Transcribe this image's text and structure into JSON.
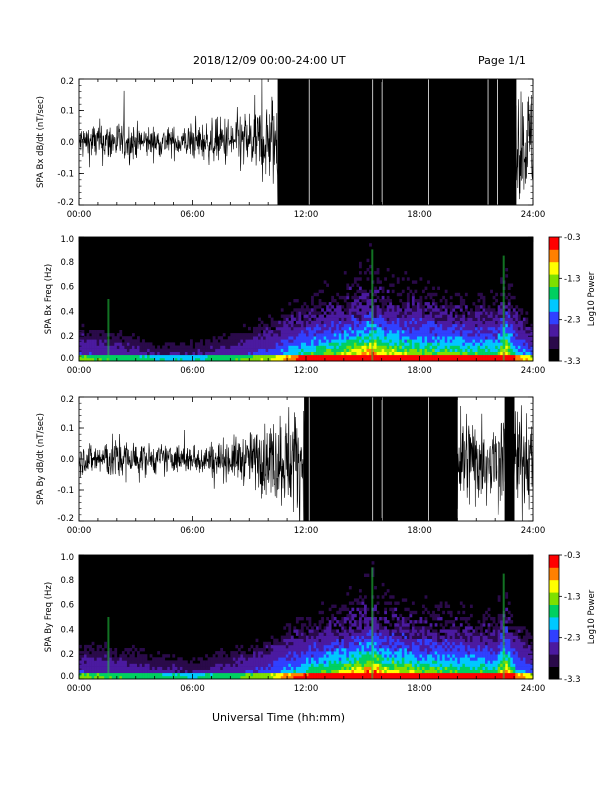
{
  "header": {
    "date_range": "2018/12/09   00:00-24:00 UT",
    "page": "Page 1/1"
  },
  "footer": {
    "xlabel": "Universal Time (hh:mm)"
  },
  "colors": {
    "trace": "#000000",
    "spectrogram_background": "#000000",
    "colorbar": [
      "#000000",
      "#2a0a4a",
      "#4b1aa0",
      "#3040ff",
      "#00c8ff",
      "#00d060",
      "#7ee000",
      "#ffff00",
      "#ff8000",
      "#ff0000"
    ]
  },
  "chart_data": [
    {
      "type": "line",
      "id": "bx-dbdt",
      "ylabel": "SPA Bx dB/dt (nT/sec)",
      "xlabel": "",
      "x_ticks": [
        "00:00",
        "06:00",
        "12:00",
        "18:00",
        "24:00"
      ],
      "y_ticks": [
        "0.2",
        "0.1",
        "0.0",
        "-0.1",
        "-0.2"
      ],
      "xlim": [
        0,
        24
      ],
      "ylim": [
        -0.2,
        0.2
      ],
      "series": [
        {
          "x": [
            0,
            1,
            2,
            3,
            4,
            5,
            6,
            7,
            8,
            9,
            10,
            10.5,
            11,
            12,
            13,
            14,
            15,
            16,
            17,
            18,
            19,
            20,
            21,
            22,
            22.5,
            23,
            24
          ],
          "amplitude": [
            0.06,
            0.07,
            0.07,
            0.06,
            0.05,
            0.05,
            0.06,
            0.07,
            0.09,
            0.11,
            0.14,
            0.2,
            0.2,
            0.2,
            0.2,
            0.2,
            0.2,
            0.2,
            0.2,
            0.2,
            0.2,
            0.2,
            0.2,
            0.2,
            0.2,
            0.2,
            0.18
          ]
        }
      ]
    },
    {
      "type": "heatmap",
      "id": "bx-freq",
      "ylabel": "SPA Bx Freq (Hz)",
      "x_ticks": [
        "00:00",
        "06:00",
        "12:00",
        "18:00",
        "24:00"
      ],
      "y_ticks": [
        "1.0",
        "0.8",
        "0.6",
        "0.4",
        "0.2",
        "0.0"
      ],
      "xlim": [
        0,
        24
      ],
      "ylim": [
        0,
        1.0
      ],
      "colorbar_label": "Log10 Power",
      "colorbar_ticks": [
        "-0.3",
        "-1.3",
        "-2.3",
        "-3.3"
      ],
      "colorbar_range": [
        -3.3,
        -0.3
      ],
      "activity_hours": [
        0,
        2,
        4,
        6,
        8,
        10,
        12,
        14,
        15.5,
        16,
        18,
        20,
        22,
        22.5,
        23,
        24
      ],
      "activity_level": [
        0.25,
        0.2,
        0.15,
        0.15,
        0.2,
        0.3,
        0.5,
        0.65,
        0.85,
        0.7,
        0.6,
        0.55,
        0.5,
        0.8,
        0.45,
        0.3
      ]
    },
    {
      "type": "line",
      "id": "by-dbdt",
      "ylabel": "SPA By dB/dt (nT/sec)",
      "xlabel": "",
      "x_ticks": [
        "00:00",
        "06:00",
        "12:00",
        "18:00",
        "24:00"
      ],
      "y_ticks": [
        "0.2",
        "0.1",
        "0.0",
        "-0.1",
        "-0.2"
      ],
      "xlim": [
        0,
        24
      ],
      "ylim": [
        -0.2,
        0.2
      ],
      "series": [
        {
          "x": [
            0,
            1,
            2,
            3,
            4,
            5,
            6,
            7,
            8,
            9,
            10,
            11,
            12,
            13,
            14,
            15,
            16,
            17,
            18,
            19,
            20,
            21,
            22,
            22.5,
            23,
            24
          ],
          "amplitude": [
            0.05,
            0.06,
            0.08,
            0.06,
            0.05,
            0.05,
            0.05,
            0.06,
            0.07,
            0.09,
            0.13,
            0.18,
            0.2,
            0.2,
            0.2,
            0.2,
            0.2,
            0.2,
            0.2,
            0.2,
            0.2,
            0.16,
            0.14,
            0.2,
            0.2,
            0.14
          ]
        }
      ]
    },
    {
      "type": "heatmap",
      "id": "by-freq",
      "ylabel": "SPA By Freq (Hz)",
      "x_ticks": [
        "00:00",
        "06:00",
        "12:00",
        "18:00",
        "24:00"
      ],
      "y_ticks": [
        "1.0",
        "0.8",
        "0.6",
        "0.4",
        "0.2",
        "0.0"
      ],
      "xlim": [
        0,
        24
      ],
      "ylim": [
        0,
        1.0
      ],
      "colorbar_label": "Log10 Power",
      "colorbar_ticks": [
        "-0.3",
        "-1.3",
        "-2.3",
        "-3.3"
      ],
      "colorbar_range": [
        -3.3,
        -0.3
      ],
      "activity_hours": [
        0,
        2,
        4,
        6,
        8,
        10,
        12,
        14,
        15.5,
        16,
        18,
        20,
        22,
        22.5,
        23,
        24
      ],
      "activity_level": [
        0.25,
        0.22,
        0.18,
        0.15,
        0.2,
        0.3,
        0.5,
        0.65,
        0.85,
        0.7,
        0.6,
        0.55,
        0.5,
        0.8,
        0.45,
        0.3
      ]
    }
  ]
}
